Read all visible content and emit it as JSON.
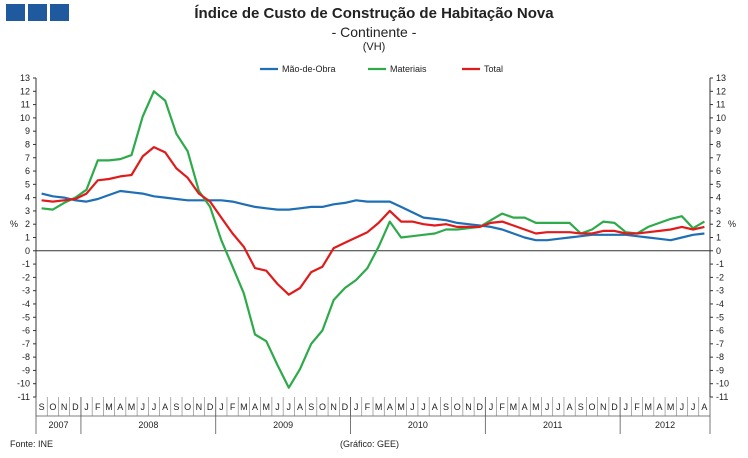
{
  "header": {
    "title": "Índice de Custo de Construção de Habitação Nova",
    "subtitle": "- Continente -",
    "unit": "(VH)"
  },
  "footer": {
    "source": "Fonte: INE",
    "credit": "(Gráfico: GEE)"
  },
  "colors": {
    "mao_de_obra": "#1f6fb5",
    "materiais": "#2eaa4a",
    "total": "#e01b1b",
    "logo": "#1f5a9e"
  },
  "chart_data": {
    "type": "line",
    "title": "Índice de Custo de Construção de Habitação Nova",
    "subtitle": "- Continente -",
    "unit_label": "(VH)",
    "ylabel_left": "%",
    "ylabel_right": "%",
    "ylim": [
      -11,
      13
    ],
    "yticks": [
      -11,
      -10,
      -9,
      -8,
      -7,
      -6,
      -5,
      -4,
      -3,
      -2,
      -1,
      0,
      1,
      2,
      3,
      4,
      5,
      6,
      7,
      8,
      9,
      10,
      11,
      12,
      13
    ],
    "legend_position": "top-center",
    "months": [
      "S",
      "O",
      "N",
      "D",
      "J",
      "F",
      "M",
      "A",
      "M",
      "J",
      "J",
      "A",
      "S",
      "O",
      "N",
      "D",
      "J",
      "F",
      "M",
      "A",
      "M",
      "J",
      "J",
      "A",
      "S",
      "O",
      "N",
      "D",
      "J",
      "F",
      "M",
      "A",
      "M",
      "J",
      "J",
      "A",
      "S",
      "O",
      "N",
      "D",
      "J",
      "F",
      "M",
      "A",
      "M",
      "J",
      "J",
      "A",
      "S",
      "O",
      "N",
      "D",
      "J",
      "F",
      "M",
      "A",
      "M",
      "J",
      "J",
      "A"
    ],
    "years": [
      {
        "label": "2007",
        "start": 0,
        "count": 4
      },
      {
        "label": "2008",
        "start": 4,
        "count": 12
      },
      {
        "label": "2009",
        "start": 16,
        "count": 12
      },
      {
        "label": "2010",
        "start": 28,
        "count": 12
      },
      {
        "label": "2011",
        "start": 40,
        "count": 12
      },
      {
        "label": "2012",
        "start": 52,
        "count": 8
      }
    ],
    "series": [
      {
        "name": "Mão-de-Obra",
        "color": "#1f6fb5",
        "values": [
          4.3,
          4.1,
          4.0,
          3.8,
          3.7,
          3.9,
          4.2,
          4.5,
          4.4,
          4.3,
          4.1,
          4.0,
          3.9,
          3.8,
          3.8,
          3.8,
          3.8,
          3.7,
          3.5,
          3.3,
          3.2,
          3.1,
          3.1,
          3.2,
          3.3,
          3.3,
          3.5,
          3.6,
          3.8,
          3.7,
          3.7,
          3.7,
          3.3,
          2.9,
          2.5,
          2.4,
          2.3,
          2.1,
          2.0,
          1.9,
          1.8,
          1.6,
          1.3,
          1.0,
          0.8,
          0.8,
          0.9,
          1.0,
          1.1,
          1.2,
          1.2,
          1.2,
          1.2,
          1.1,
          1.0,
          0.9,
          0.8,
          1.0,
          1.2,
          1.3
        ]
      },
      {
        "name": "Materiais",
        "color": "#2eaa4a",
        "values": [
          3.2,
          3.1,
          3.6,
          4.0,
          4.6,
          6.8,
          6.8,
          6.9,
          7.2,
          10.1,
          12.0,
          11.3,
          8.8,
          7.5,
          4.5,
          3.3,
          0.8,
          -1.2,
          -3.2,
          -6.3,
          -6.8,
          -8.6,
          -10.3,
          -8.9,
          -7.0,
          -6.0,
          -3.7,
          -2.8,
          -2.2,
          -1.3,
          0.3,
          2.2,
          1.0,
          1.1,
          1.2,
          1.3,
          1.6,
          1.6,
          1.7,
          1.8,
          2.3,
          2.8,
          2.5,
          2.5,
          2.1,
          2.1,
          2.1,
          2.1,
          1.3,
          1.6,
          2.2,
          2.1,
          1.4,
          1.3,
          1.8,
          2.1,
          2.4,
          2.6,
          1.7,
          2.2
        ]
      },
      {
        "name": "Total",
        "color": "#e01b1b",
        "values": [
          3.8,
          3.7,
          3.8,
          3.9,
          4.3,
          5.3,
          5.4,
          5.6,
          5.7,
          7.1,
          7.8,
          7.4,
          6.2,
          5.5,
          4.3,
          3.7,
          2.5,
          1.3,
          0.3,
          -1.3,
          -1.5,
          -2.5,
          -3.3,
          -2.8,
          -1.6,
          -1.2,
          0.2,
          0.6,
          1.0,
          1.4,
          2.1,
          3.0,
          2.2,
          2.2,
          2.0,
          1.9,
          2.0,
          1.8,
          1.8,
          1.8,
          2.1,
          2.2,
          1.9,
          1.6,
          1.3,
          1.4,
          1.4,
          1.4,
          1.3,
          1.3,
          1.5,
          1.5,
          1.3,
          1.3,
          1.4,
          1.5,
          1.6,
          1.8,
          1.6,
          1.8
        ]
      }
    ]
  }
}
